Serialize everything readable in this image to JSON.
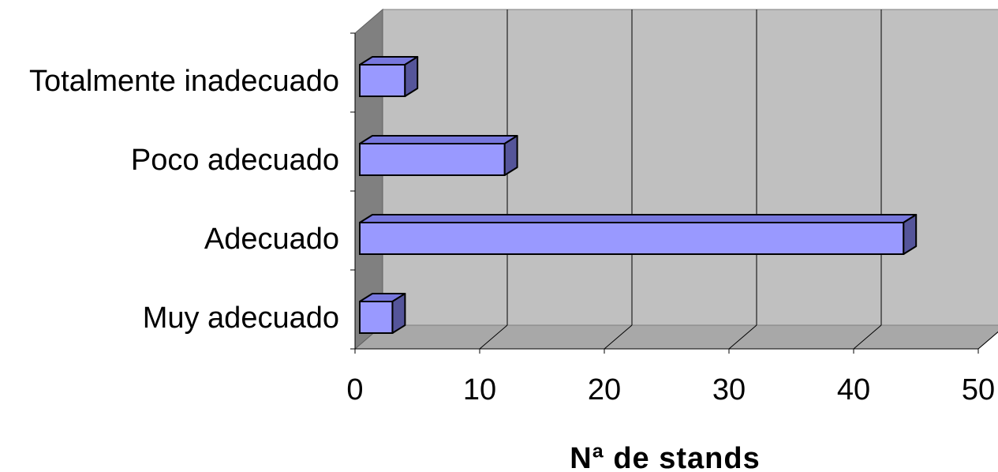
{
  "chart_data": {
    "type": "bar",
    "orientation": "horizontal",
    "style": "3d",
    "categories": [
      "Totalmente inadecuado",
      "Poco adecuado",
      "Adecuado",
      "Muy adecuado"
    ],
    "values": [
      4,
      12,
      44,
      3
    ],
    "xlabel": "Nª de stands",
    "ylabel": "",
    "xlim": [
      0,
      50
    ],
    "xticks": [
      "0",
      "10",
      "20",
      "30",
      "40",
      "50"
    ],
    "grid": true,
    "legend": "none",
    "colors": {
      "bar_front": "#9999ff",
      "bar_top": "#7777dd",
      "bar_side": "#55559a",
      "plot_back": "#c0c0c0",
      "plot_floor": "#a8a8a8",
      "plot_left_wall": "#808080",
      "gridline": "#000000"
    }
  }
}
